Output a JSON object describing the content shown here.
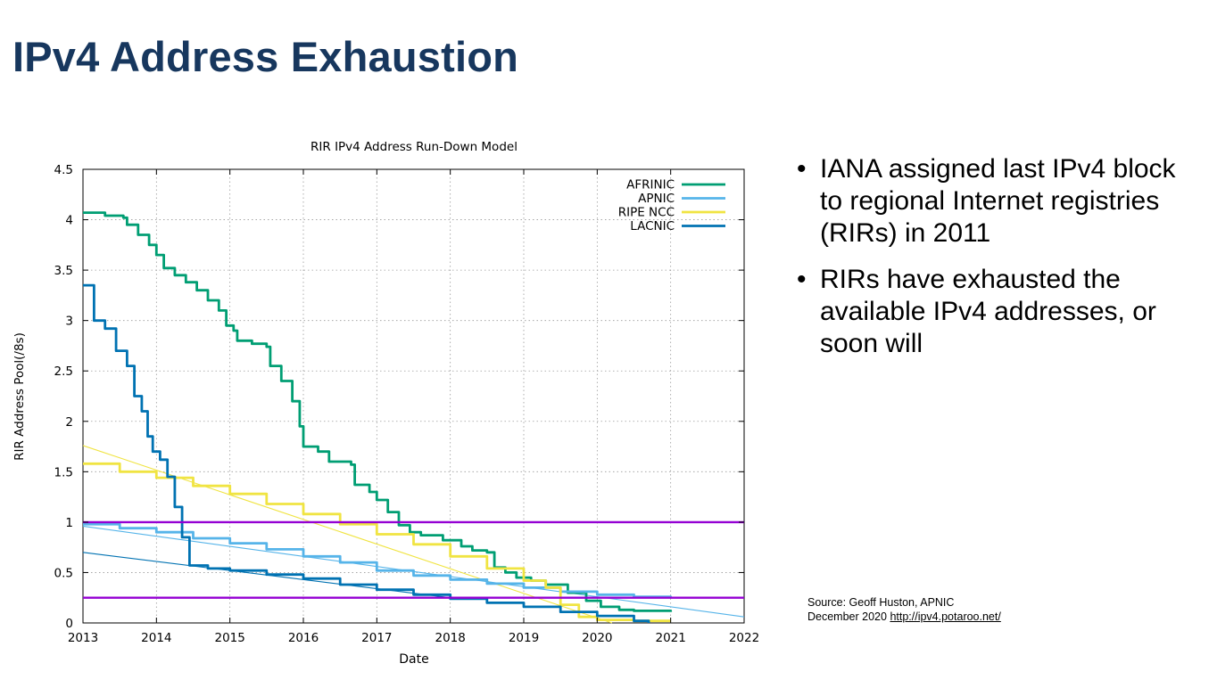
{
  "slide": {
    "title": "IPv4 Address Exhaustion",
    "bullets": [
      "IANA assigned last IPv4 block to regional Internet registries (RIRs) in 2011",
      "RIRs have exhausted the available IPv4 addresses, or soon will"
    ],
    "source_line1": "Source: Geoff Huston, APNIC",
    "source_date": "December 2020",
    "source_link": "http://ipv4.potaroo.net/"
  },
  "chart_data": {
    "type": "line",
    "title": "RIR IPv4 Address Run-Down Model",
    "xlabel": "Date",
    "ylabel": "RIR Address Pool(/8s)",
    "xlim": [
      2013,
      2022
    ],
    "ylim": [
      0,
      4.5
    ],
    "xticks": [
      "2013",
      "2014",
      "2015",
      "2016",
      "2017",
      "2018",
      "2019",
      "2020",
      "2021",
      "2022"
    ],
    "yticks": [
      "0",
      "0.5",
      "1",
      "1.5",
      "2",
      "2.5",
      "3",
      "3.5",
      "4",
      "4.5"
    ],
    "grid": true,
    "legend_position": "top-right",
    "reference_lines": [
      {
        "y": 1.0,
        "color": "#9400d3"
      },
      {
        "y": 0.25,
        "color": "#9400d3"
      }
    ],
    "series": [
      {
        "name": "AFRINIC",
        "color": "#009e73",
        "points": [
          [
            2013.0,
            4.07
          ],
          [
            2013.3,
            4.04
          ],
          [
            2013.55,
            4.02
          ],
          [
            2013.6,
            3.95
          ],
          [
            2013.75,
            3.85
          ],
          [
            2013.9,
            3.75
          ],
          [
            2014.0,
            3.65
          ],
          [
            2014.1,
            3.52
          ],
          [
            2014.25,
            3.45
          ],
          [
            2014.4,
            3.38
          ],
          [
            2014.55,
            3.3
          ],
          [
            2014.7,
            3.2
          ],
          [
            2014.85,
            3.1
          ],
          [
            2014.95,
            2.95
          ],
          [
            2015.05,
            2.9
          ],
          [
            2015.1,
            2.8
          ],
          [
            2015.3,
            2.77
          ],
          [
            2015.5,
            2.74
          ],
          [
            2015.55,
            2.55
          ],
          [
            2015.7,
            2.4
          ],
          [
            2015.85,
            2.2
          ],
          [
            2015.95,
            1.95
          ],
          [
            2016.0,
            1.75
          ],
          [
            2016.2,
            1.7
          ],
          [
            2016.35,
            1.6
          ],
          [
            2016.65,
            1.57
          ],
          [
            2016.7,
            1.37
          ],
          [
            2016.9,
            1.3
          ],
          [
            2017.0,
            1.22
          ],
          [
            2017.15,
            1.1
          ],
          [
            2017.3,
            0.97
          ],
          [
            2017.45,
            0.9
          ],
          [
            2017.6,
            0.87
          ],
          [
            2017.9,
            0.82
          ],
          [
            2018.15,
            0.76
          ],
          [
            2018.3,
            0.72
          ],
          [
            2018.5,
            0.7
          ],
          [
            2018.6,
            0.55
          ],
          [
            2018.75,
            0.5
          ],
          [
            2018.9,
            0.45
          ],
          [
            2019.1,
            0.42
          ],
          [
            2019.3,
            0.38
          ],
          [
            2019.6,
            0.3
          ],
          [
            2019.85,
            0.22
          ],
          [
            2020.05,
            0.16
          ],
          [
            2020.3,
            0.13
          ],
          [
            2020.5,
            0.12
          ],
          [
            2021.0,
            0.11
          ]
        ]
      },
      {
        "name": "APNIC",
        "color": "#56b4e9",
        "points": [
          [
            2013.0,
            0.98
          ],
          [
            2013.5,
            0.94
          ],
          [
            2014.0,
            0.9
          ],
          [
            2014.5,
            0.84
          ],
          [
            2015.0,
            0.79
          ],
          [
            2015.5,
            0.73
          ],
          [
            2016.0,
            0.66
          ],
          [
            2016.5,
            0.6
          ],
          [
            2017.0,
            0.52
          ],
          [
            2017.5,
            0.47
          ],
          [
            2018.0,
            0.43
          ],
          [
            2018.5,
            0.39
          ],
          [
            2019.0,
            0.35
          ],
          [
            2019.5,
            0.31
          ],
          [
            2020.0,
            0.28
          ],
          [
            2020.5,
            0.26
          ],
          [
            2021.0,
            0.25
          ]
        ]
      },
      {
        "name": "RIPE NCC",
        "color": "#f0e442",
        "points": [
          [
            2013.0,
            1.58
          ],
          [
            2013.5,
            1.5
          ],
          [
            2014.0,
            1.44
          ],
          [
            2014.5,
            1.36
          ],
          [
            2015.0,
            1.28
          ],
          [
            2015.5,
            1.18
          ],
          [
            2016.0,
            1.08
          ],
          [
            2016.5,
            0.98
          ],
          [
            2017.0,
            0.88
          ],
          [
            2017.5,
            0.78
          ],
          [
            2018.0,
            0.66
          ],
          [
            2018.5,
            0.54
          ],
          [
            2019.0,
            0.42
          ],
          [
            2019.3,
            0.35
          ],
          [
            2019.5,
            0.18
          ],
          [
            2019.75,
            0.06
          ],
          [
            2020.0,
            0.03
          ],
          [
            2020.5,
            0.02
          ],
          [
            2021.0,
            0.02
          ]
        ]
      },
      {
        "name": "LACNIC",
        "color": "#0072b2",
        "points": [
          [
            2013.0,
            3.35
          ],
          [
            2013.15,
            3.0
          ],
          [
            2013.3,
            2.92
          ],
          [
            2013.45,
            2.7
          ],
          [
            2013.6,
            2.55
          ],
          [
            2013.7,
            2.25
          ],
          [
            2013.8,
            2.1
          ],
          [
            2013.88,
            1.85
          ],
          [
            2013.95,
            1.7
          ],
          [
            2014.05,
            1.62
          ],
          [
            2014.15,
            1.45
          ],
          [
            2014.25,
            1.15
          ],
          [
            2014.35,
            0.85
          ],
          [
            2014.45,
            0.57
          ],
          [
            2014.7,
            0.54
          ],
          [
            2015.0,
            0.52
          ],
          [
            2015.5,
            0.48
          ],
          [
            2016.0,
            0.44
          ],
          [
            2016.5,
            0.38
          ],
          [
            2017.0,
            0.33
          ],
          [
            2017.5,
            0.28
          ],
          [
            2018.0,
            0.24
          ],
          [
            2018.5,
            0.2
          ],
          [
            2019.0,
            0.16
          ],
          [
            2019.5,
            0.11
          ],
          [
            2020.0,
            0.07
          ],
          [
            2020.5,
            0.02
          ],
          [
            2020.7,
            0.0
          ]
        ]
      }
    ],
    "trend_lines": [
      {
        "color": "#f0e442",
        "from": [
          2013.0,
          1.76
        ],
        "to": [
          2020.2,
          0.0
        ]
      },
      {
        "color": "#56b4e9",
        "from": [
          2013.0,
          0.96
        ],
        "to": [
          2022.0,
          0.06
        ]
      },
      {
        "color": "#0072b2",
        "from": [
          2013.0,
          0.7
        ],
        "to": [
          2018.0,
          0.25
        ]
      }
    ]
  }
}
